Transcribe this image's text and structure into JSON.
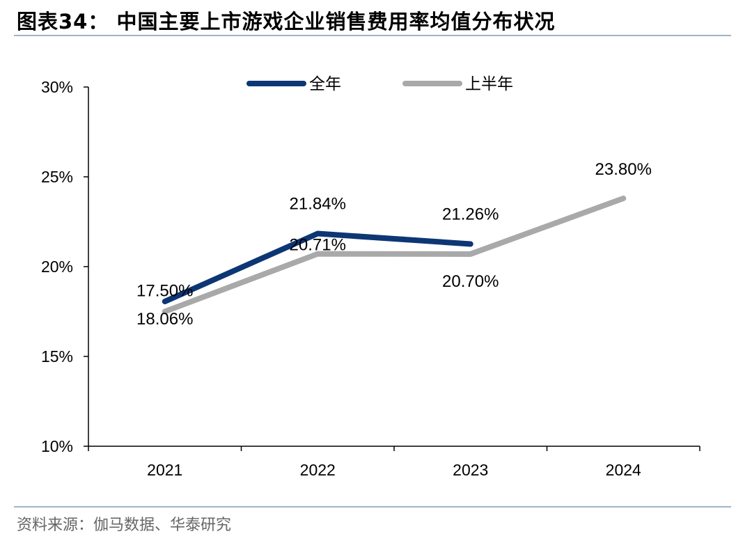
{
  "header": {
    "title": "图表34： 中国主要上市游戏企业销售费用率均值分布状况"
  },
  "footer": {
    "source": "资料来源：伽马数据、华泰研究"
  },
  "colors": {
    "full_year": "#0d3674",
    "half_year": "#a9a9a9",
    "rule": "#9fb4c8"
  },
  "chart_data": {
    "type": "line",
    "title": "",
    "xlabel": "",
    "ylabel": "",
    "categories": [
      "2021",
      "2022",
      "2023",
      "2024"
    ],
    "ylim": [
      0.1,
      0.3
    ],
    "yticks": [
      0.1,
      0.15,
      0.2,
      0.25,
      0.3
    ],
    "ytick_labels": [
      "10%",
      "15%",
      "20%",
      "25%",
      "30%"
    ],
    "grid": false,
    "legend_position": "top",
    "series": [
      {
        "name": "全年",
        "values": [
          0.1806,
          0.2184,
          0.2126,
          null
        ],
        "labels": [
          "18.06%",
          "21.84%",
          "21.26%",
          null
        ]
      },
      {
        "name": "上半年",
        "values": [
          0.175,
          0.2071,
          0.207,
          0.238
        ],
        "labels": [
          "17.50%",
          "20.71%",
          "20.70%",
          "23.80%"
        ]
      }
    ]
  }
}
